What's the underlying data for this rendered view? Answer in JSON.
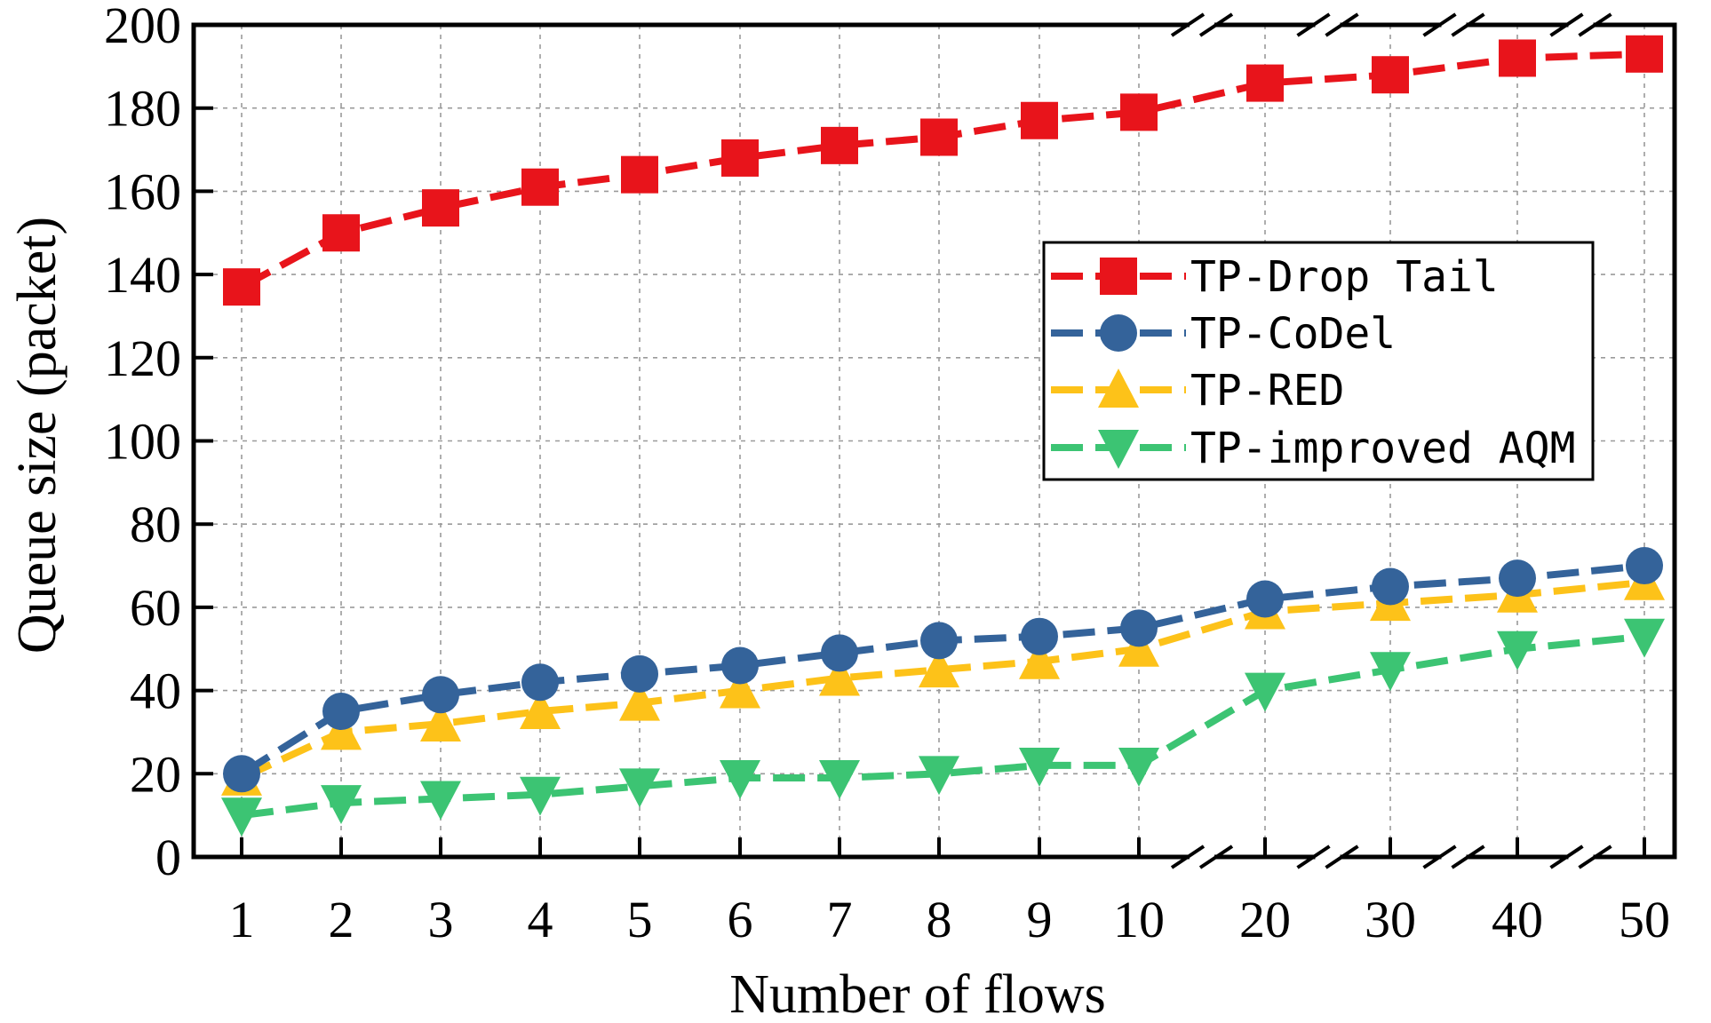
{
  "chart_data": {
    "type": "line",
    "title": "",
    "xlabel": "Number of flows",
    "ylabel": "Queue size (packet)",
    "ylim": [
      0,
      200
    ],
    "yticks": [
      "0",
      "20",
      "40",
      "60",
      "80",
      "100",
      "120",
      "140",
      "160",
      "180",
      "200"
    ],
    "categories": [
      "1",
      "2",
      "3",
      "4",
      "5",
      "6",
      "7",
      "8",
      "9",
      "10",
      "20",
      "30",
      "40",
      "50"
    ],
    "axis_breaks_after": [
      "10",
      "20",
      "30",
      "40"
    ],
    "grid": true,
    "legend_position": "right",
    "series": [
      {
        "name": "TP-Drop Tail",
        "color": "#e8141b",
        "marker": "square",
        "values": [
          137,
          150,
          156,
          161,
          164,
          168,
          171,
          173,
          177,
          179,
          186,
          188,
          192,
          193
        ]
      },
      {
        "name": "TP-CoDel",
        "color": "#34639a",
        "marker": "circle",
        "values": [
          20,
          35,
          39,
          42,
          44,
          46,
          49,
          52,
          53,
          55,
          62,
          65,
          67,
          70
        ]
      },
      {
        "name": "TP-RED",
        "color": "#fdc219",
        "marker": "triangle-up",
        "values": [
          19,
          30,
          32,
          35,
          37,
          40,
          43,
          45,
          47,
          50,
          59,
          61,
          63,
          66
        ]
      },
      {
        "name": "TP-improved AQM",
        "color": "#3cc473",
        "marker": "triangle-down",
        "values": [
          10,
          13,
          14,
          15,
          17,
          19,
          19,
          20,
          22,
          22,
          40,
          45,
          50,
          53
        ]
      }
    ]
  }
}
